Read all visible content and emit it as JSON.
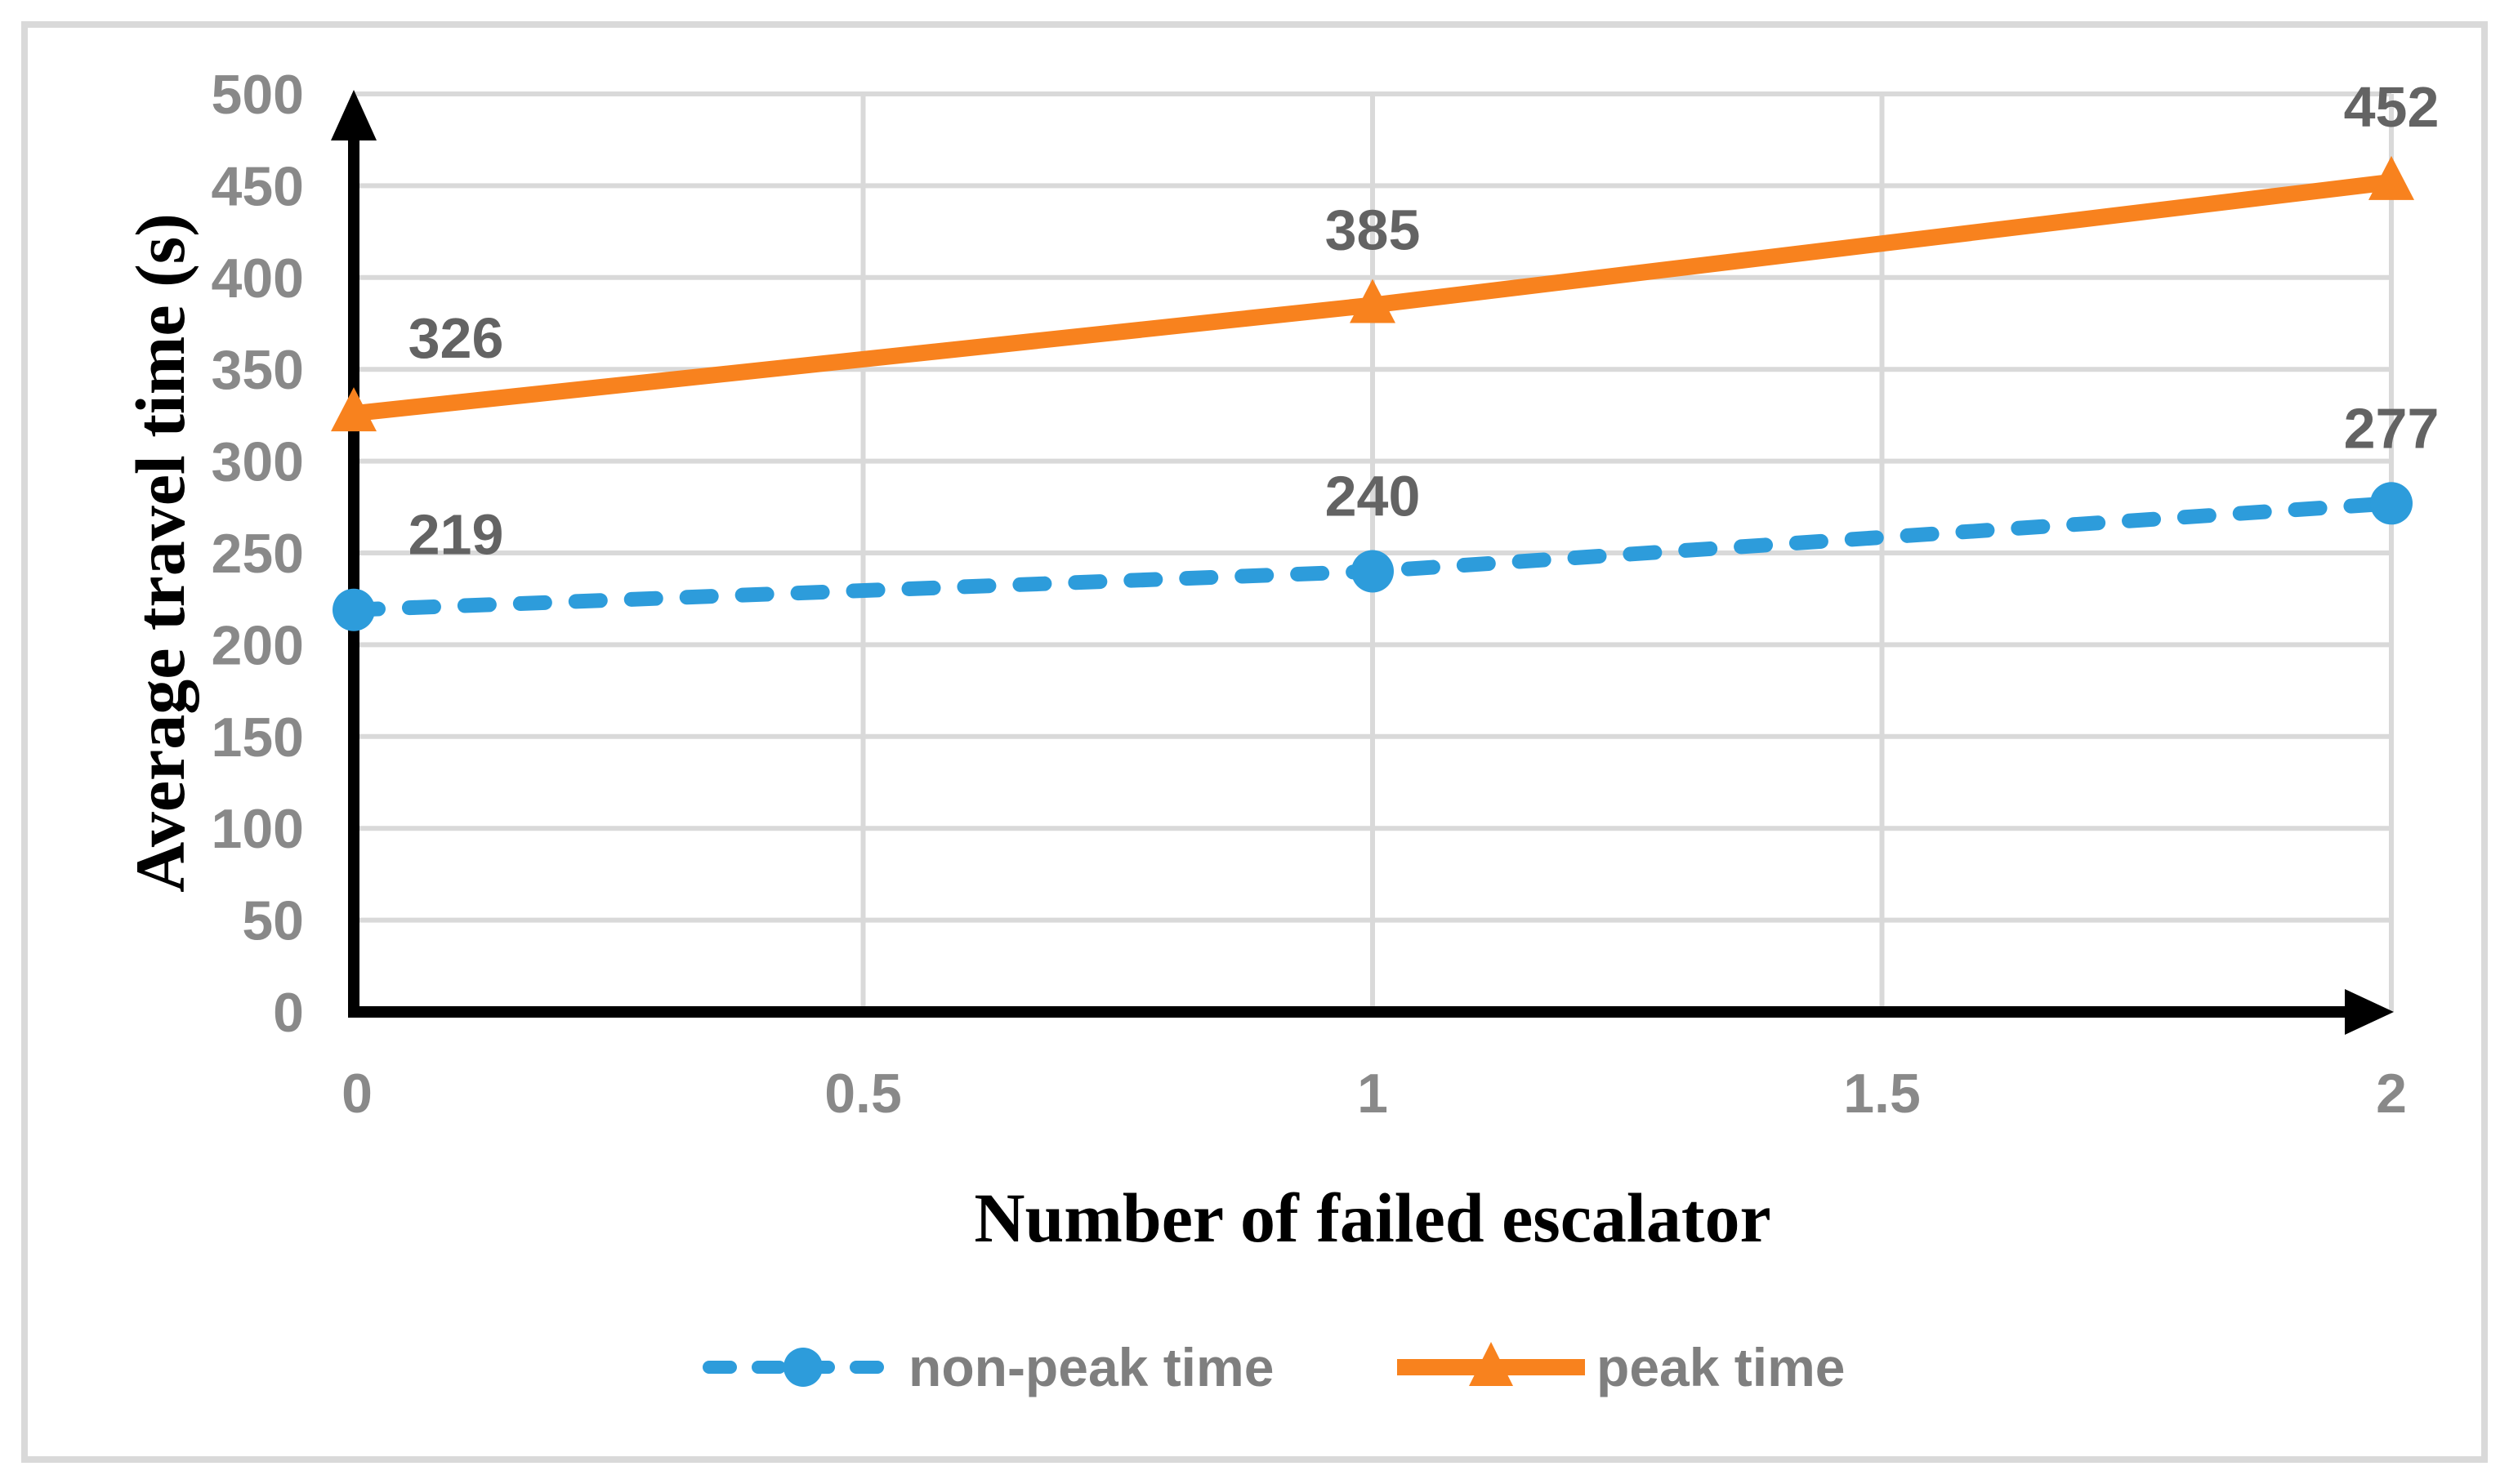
{
  "chart_data": {
    "type": "line",
    "title": "",
    "xlabel": "Number of failed escalator",
    "ylabel": "Average travel time (s)",
    "x": [
      0,
      1,
      2
    ],
    "xtick_labels": [
      "0",
      "0.5",
      "1",
      "1.5",
      "2"
    ],
    "yticks": [
      "0",
      "50",
      "100",
      "150",
      "200",
      "250",
      "300",
      "350",
      "400",
      "450",
      "500"
    ],
    "xlim": [
      0,
      2
    ],
    "ylim": [
      0,
      500
    ],
    "grid": true,
    "legend_position": "bottom-center",
    "series": [
      {
        "name": "non-peak time",
        "values": [
          219,
          240,
          277
        ],
        "labels": [
          "219",
          "240",
          "277"
        ],
        "color": "#2D9CDB",
        "marker": "circle",
        "line_style": "dashed"
      },
      {
        "name": "peak time",
        "values": [
          326,
          385,
          452
        ],
        "labels": [
          "326",
          "385",
          "452"
        ],
        "color": "#F8821E",
        "marker": "triangle",
        "line_style": "solid"
      }
    ]
  },
  "colors": {
    "background": "#FFFFFF",
    "figure_border": "#D9D9D9",
    "gridline": "#D9D9D9",
    "axis": "#000000",
    "tick_label": "#898989",
    "data_label": "#636363",
    "legend_label": "#7F7F7F"
  }
}
